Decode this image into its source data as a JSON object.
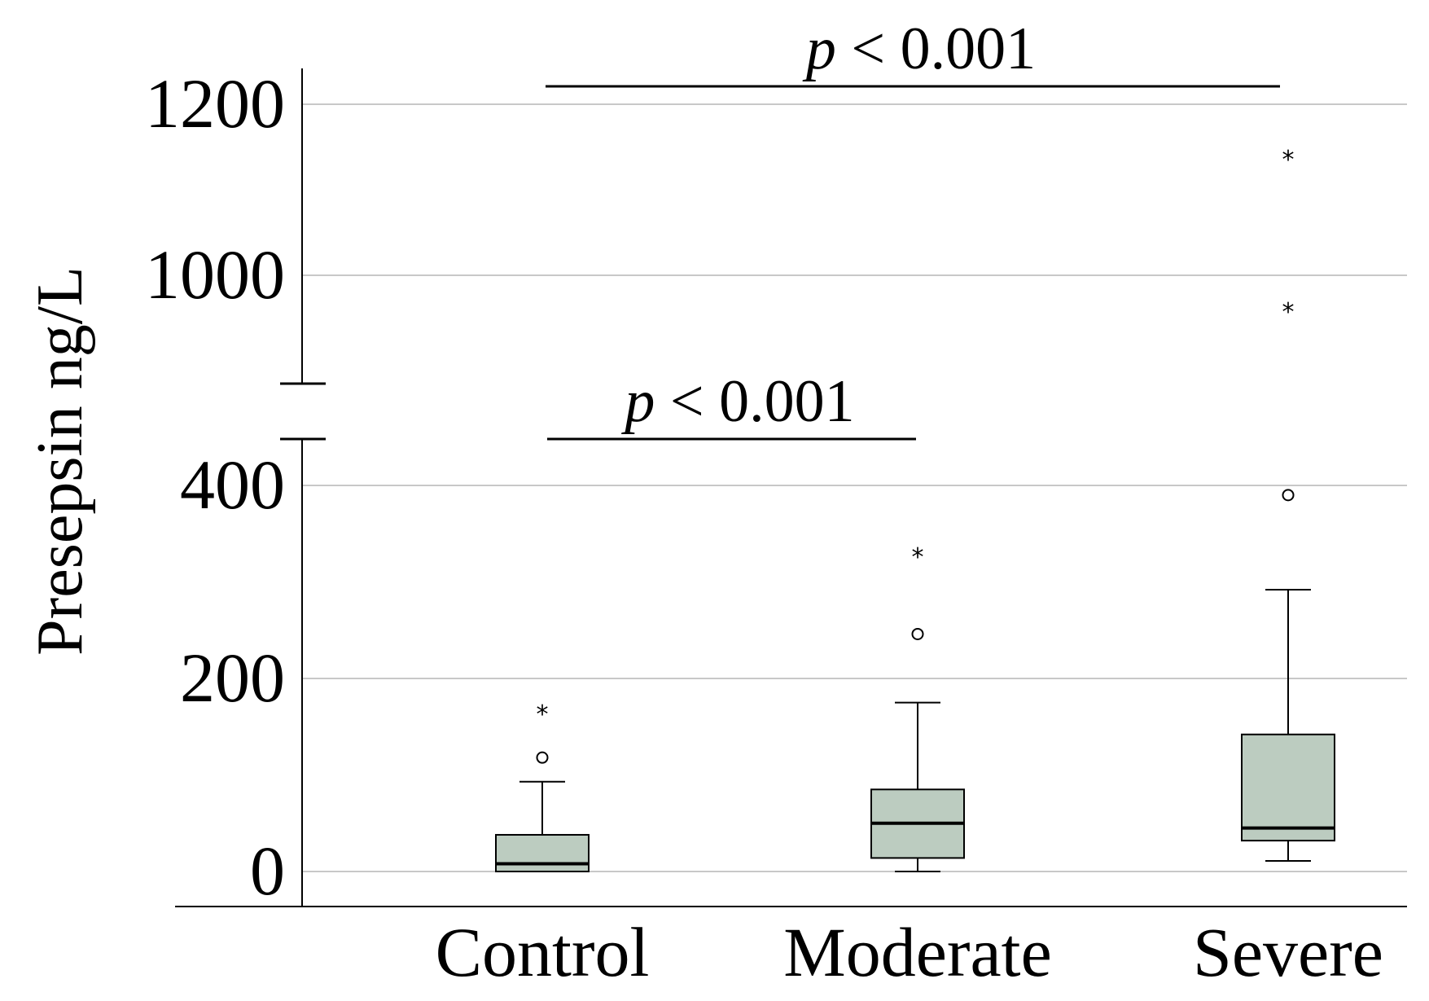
{
  "chart_data": {
    "type": "box",
    "title": "",
    "xlabel": "",
    "ylabel": "Presepsin ng/L",
    "categories": [
      "Control",
      "Moderate",
      "Severe"
    ],
    "y_axis": {
      "broken": true,
      "lower_segment": {
        "range": [
          0,
          450
        ],
        "ticks": [
          0,
          200,
          400
        ]
      },
      "upper_segment": {
        "range": [
          900,
          1235
        ],
        "ticks": [
          1000,
          1200
        ]
      }
    },
    "grid": true,
    "box_color": "#bcccc0",
    "boxes": [
      {
        "category": "Control",
        "whisker_low": 0,
        "q1": 0,
        "median": 8,
        "q3": 38,
        "whisker_high": 93,
        "outliers_circle": [
          118
        ],
        "outliers_star": [
          167
        ]
      },
      {
        "category": "Moderate",
        "whisker_low": 0,
        "q1": 14,
        "median": 50,
        "q3": 85,
        "whisker_high": 175,
        "outliers_circle": [
          246
        ],
        "outliers_star": [
          330
        ]
      },
      {
        "category": "Severe",
        "whisker_low": 11,
        "q1": 32,
        "median": 45,
        "q3": 142,
        "whisker_high": 292,
        "outliers_circle": [
          390
        ],
        "outliers_star": [
          1140,
          962
        ]
      }
    ],
    "significance": [
      {
        "from": "Control",
        "to": "Moderate",
        "label": "< 0.001",
        "p_symbol": "p",
        "y": 450,
        "segment": "lower"
      },
      {
        "from": "Control",
        "to": "Severe",
        "label": "< 0.001",
        "p_symbol": "p",
        "y": 1220,
        "segment": "upper"
      }
    ]
  }
}
